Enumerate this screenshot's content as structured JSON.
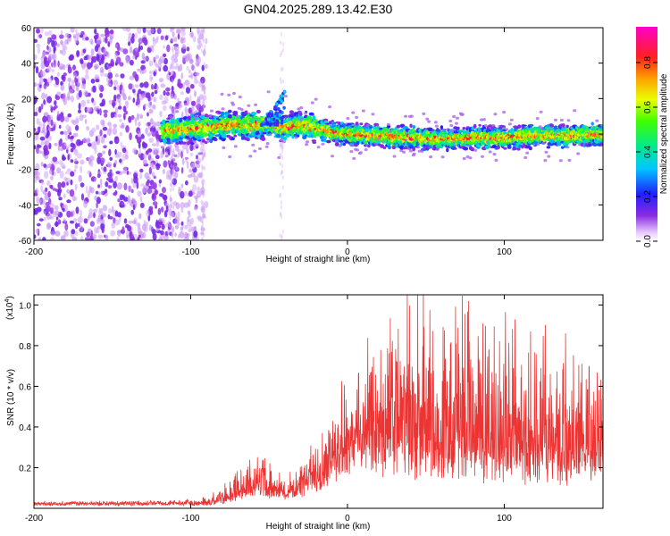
{
  "chart_data": [
    {
      "type": "heatmap",
      "title": "GN04.2025.289.13.42.E30",
      "xlabel": "Height of straight line (km)",
      "ylabel": "Frequency (Hz)",
      "xlim": [
        -200,
        163
      ],
      "ylim": [
        -60,
        60
      ],
      "xticks": [
        "-200",
        "-100",
        "0",
        "100"
      ],
      "xtick_values": [
        -200,
        -100,
        0,
        100
      ],
      "yticks": [
        "-60",
        "-40",
        "-20",
        "0",
        "20",
        "40",
        "60"
      ],
      "ytick_values": [
        -60,
        -40,
        -20,
        0,
        20,
        40,
        60
      ],
      "ridge": {
        "x": [
          -118,
          -100,
          -85,
          -75,
          -60,
          -50,
          -45,
          -40,
          -30,
          -20,
          -10,
          0,
          20,
          40,
          60,
          80,
          100,
          120,
          140,
          163
        ],
        "y": [
          2,
          3,
          4,
          5,
          5,
          6,
          5,
          4,
          5,
          3,
          1,
          0,
          -1,
          -2,
          -3,
          -2,
          -2,
          -1,
          -1,
          0
        ]
      },
      "noise_region_x": [
        -200,
        -90
      ],
      "colorbar": {
        "label": "Normalized spectral amplitude",
        "ticks": [
          "0.0",
          "0.2",
          "0.4",
          "0.6",
          "0.8"
        ],
        "tick_values": [
          0.0,
          0.2,
          0.4,
          0.6,
          0.8
        ],
        "range": [
          0,
          0.96
        ]
      }
    },
    {
      "type": "line",
      "xlabel": "Height of straight line (km)",
      "ylabel": "SNR (10 * v/v)",
      "scale_label": "(x10",
      "scale_exponent": "4",
      "scale_close": ")",
      "xlim": [
        -200,
        163
      ],
      "ylim": [
        0,
        1.05
      ],
      "xticks": [
        "-200",
        "-100",
        "0",
        "100"
      ],
      "xtick_values": [
        -200,
        -100,
        0,
        100
      ],
      "yticks": [
        "0.2",
        "0.4",
        "0.6",
        "0.8",
        "1.0"
      ],
      "ytick_values": [
        0.2,
        0.4,
        0.6,
        0.8,
        1.0
      ],
      "color": "#ee3333",
      "envelope": {
        "x": [
          -200,
          -100,
          -90,
          -80,
          -70,
          -60,
          -50,
          -40,
          -30,
          -20,
          -10,
          0,
          10,
          20,
          30,
          40,
          60,
          80,
          100,
          120,
          140,
          163
        ],
        "base": [
          0.02,
          0.02,
          0.02,
          0.03,
          0.05,
          0.08,
          0.08,
          0.05,
          0.08,
          0.12,
          0.18,
          0.25,
          0.28,
          0.26,
          0.24,
          0.22,
          0.2,
          0.2,
          0.2,
          0.18,
          0.18,
          0.2
        ],
        "amplitude": [
          0.01,
          0.02,
          0.04,
          0.07,
          0.13,
          0.2,
          0.15,
          0.08,
          0.15,
          0.25,
          0.35,
          0.35,
          0.45,
          0.6,
          0.7,
          0.85,
          0.8,
          0.85,
          0.7,
          0.75,
          0.7,
          0.55
        ]
      }
    }
  ]
}
